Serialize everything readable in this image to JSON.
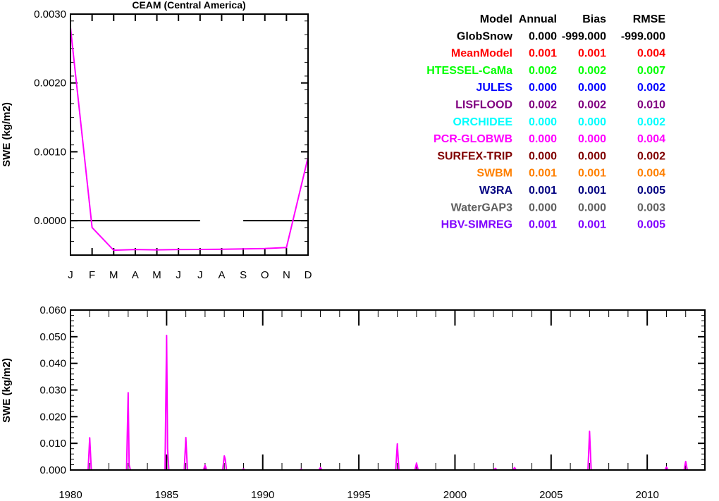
{
  "chart_data": [
    {
      "type": "line",
      "title": "CEAM (Central America)",
      "ylabel": "SWE (kg/m2)",
      "categories": [
        "J",
        "F",
        "M",
        "A",
        "M",
        "J",
        "J",
        "A",
        "S",
        "O",
        "N",
        "D"
      ],
      "ylim": [
        -0.0005,
        0.003
      ],
      "yticks": [
        "0.0000",
        "0.0010",
        "0.0020",
        "0.0030"
      ],
      "ytick_values": [
        0,
        0.001,
        0.002,
        0.003
      ],
      "series": [
        {
          "name": "PCR-GLOBWB",
          "color": "#ff00ff",
          "values": [
            0.0028,
            -0.0001,
            -0.00043,
            -0.00042,
            -0.000425,
            -0.00042,
            -0.000418,
            -0.000415,
            -0.00041,
            -0.000405,
            -0.00039,
            0.00092
          ]
        },
        {
          "name": "GlobSnow",
          "color": "#000000",
          "values": [
            0,
            0,
            0,
            0,
            0,
            0,
            0,
            null,
            0,
            0,
            0,
            0
          ]
        }
      ]
    },
    {
      "type": "line",
      "ylabel": "SWE (kg/m2)",
      "xlim": [
        1980,
        2013
      ],
      "ylim": [
        0,
        0.06
      ],
      "xticks": [
        "1980",
        "1985",
        "1990",
        "1995",
        "2000",
        "2005",
        "2010"
      ],
      "xtick_values": [
        1980,
        1985,
        1990,
        1995,
        2000,
        2005,
        2010
      ],
      "yticks": [
        "0.000",
        "0.010",
        "0.020",
        "0.030",
        "0.040",
        "0.050",
        "0.060"
      ],
      "ytick_values": [
        0,
        0.01,
        0.02,
        0.03,
        0.04,
        0.05,
        0.06
      ],
      "series": [
        {
          "name": "PCR-GLOBWB",
          "color": "#ff00ff",
          "peaks": [
            {
              "x": 1981.0,
              "y": 0.0121
            },
            {
              "x": 1983.0,
              "y": 0.029,
              "tail": 0.002
            },
            {
              "x": 1985.0,
              "y": 0.0505,
              "tail": 0.008
            },
            {
              "x": 1986.0,
              "y": 0.0122
            },
            {
              "x": 1987.0,
              "y": 0.0018
            },
            {
              "x": 1988.0,
              "y": 0.0053,
              "tail": 0.004
            },
            {
              "x": 1989.0,
              "y": 0.0004
            },
            {
              "x": 1992.0,
              "y": 0.0003
            },
            {
              "x": 1993.0,
              "y": 0.0009
            },
            {
              "x": 1997.0,
              "y": 0.0098
            },
            {
              "x": 1998.0,
              "y": 0.0026
            },
            {
              "x": 2002.1,
              "y": 0.0006
            },
            {
              "x": 2003.1,
              "y": 0.0009
            },
            {
              "x": 2007.0,
              "y": 0.0145
            },
            {
              "x": 2011.0,
              "y": 0.0011
            },
            {
              "x": 2012.0,
              "y": 0.0032
            }
          ]
        }
      ]
    }
  ],
  "stats_table": {
    "headers": [
      "Model",
      "Annual",
      "Bias",
      "RMSE"
    ],
    "rows": [
      {
        "model": "GlobSnow",
        "annual": "0.000",
        "bias": "-999.000",
        "rmse": "-999.000",
        "color": "#000000"
      },
      {
        "model": "MeanModel",
        "annual": "0.001",
        "bias": "0.001",
        "rmse": "0.004",
        "color": "#ff0000"
      },
      {
        "model": "HTESSEL-CaMa",
        "annual": "0.002",
        "bias": "0.002",
        "rmse": "0.007",
        "color": "#00ff00"
      },
      {
        "model": "JULES",
        "annual": "0.000",
        "bias": "0.000",
        "rmse": "0.002",
        "color": "#0000ff"
      },
      {
        "model": "LISFLOOD",
        "annual": "0.002",
        "bias": "0.002",
        "rmse": "0.010",
        "color": "#800080"
      },
      {
        "model": "ORCHIDEE",
        "annual": "0.000",
        "bias": "0.000",
        "rmse": "0.002",
        "color": "#00ffff"
      },
      {
        "model": "PCR-GLOBWB",
        "annual": "0.000",
        "bias": "0.000",
        "rmse": "0.004",
        "color": "#ff00ff"
      },
      {
        "model": "SURFEX-TRIP",
        "annual": "0.000",
        "bias": "0.000",
        "rmse": "0.002",
        "color": "#800000"
      },
      {
        "model": "SWBM",
        "annual": "0.001",
        "bias": "0.001",
        "rmse": "0.004",
        "color": "#ff8000"
      },
      {
        "model": "W3RA",
        "annual": "0.001",
        "bias": "0.001",
        "rmse": "0.005",
        "color": "#000080"
      },
      {
        "model": "WaterGAP3",
        "annual": "0.000",
        "bias": "0.000",
        "rmse": "0.003",
        "color": "#606060"
      },
      {
        "model": "HBV-SIMREG",
        "annual": "0.001",
        "bias": "0.001",
        "rmse": "0.005",
        "color": "#8000ff"
      }
    ]
  }
}
